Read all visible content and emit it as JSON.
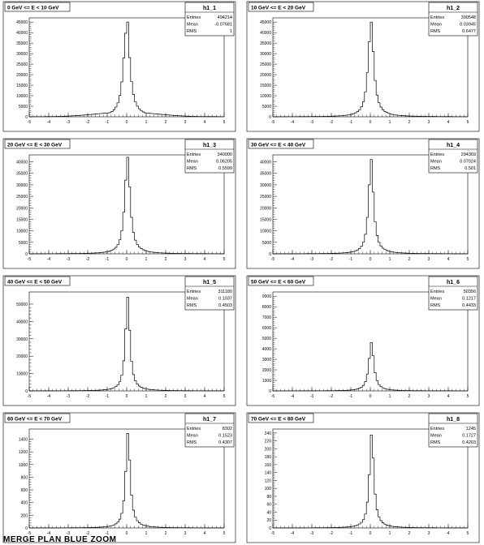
{
  "footer": "MERGE PLAN BLUE ZOOM",
  "chart_data": [
    {
      "type": "bar",
      "title": "0 GeV <= E < 10 GeV",
      "stats": {
        "name": "h1_1",
        "entries": "494214",
        "mean": "-0.07681",
        "rms": "1"
      },
      "xlim": [
        -5,
        5
      ],
      "ylim": [
        0,
        47000
      ],
      "yticks": [
        0,
        5000,
        10000,
        15000,
        20000,
        25000,
        30000,
        35000,
        40000,
        45000
      ],
      "xticks": [
        -5,
        -4,
        -3,
        -2,
        -1,
        0,
        1,
        2,
        3,
        4,
        5
      ],
      "peak": 45000,
      "width": 0.28,
      "floor": 2200,
      "floor_width": 2.2
    },
    {
      "type": "bar",
      "title": "10 GeV <= E < 20 GeV",
      "stats": {
        "name": "h1_2",
        "entries": "390548",
        "mean": "0.03945",
        "rms": "0.6477"
      },
      "xlim": [
        -5,
        5
      ],
      "ylim": [
        0,
        47000
      ],
      "yticks": [
        0,
        5000,
        10000,
        15000,
        20000,
        25000,
        30000,
        35000,
        40000,
        45000
      ],
      "xticks": [
        -5,
        -4,
        -3,
        -2,
        -1,
        0,
        1,
        2,
        3,
        4,
        5
      ],
      "peak": 45000,
      "width": 0.25,
      "floor": 500,
      "floor_width": 1.4
    },
    {
      "type": "bar",
      "title": "20 GeV <= E < 30 GeV",
      "stats": {
        "name": "h1_3",
        "entries": "340000",
        "mean": "0.06205",
        "rms": "0.5599"
      },
      "xlim": [
        -5,
        5
      ],
      "ylim": [
        0,
        43000
      ],
      "yticks": [
        0,
        5000,
        10000,
        15000,
        20000,
        25000,
        30000,
        35000,
        40000
      ],
      "xticks": [
        -5,
        -4,
        -3,
        -2,
        -1,
        0,
        1,
        2,
        3,
        4,
        5
      ],
      "peak": 42000,
      "width": 0.24,
      "floor": 300,
      "floor_width": 1.2
    },
    {
      "type": "bar",
      "title": "30 GeV <= E < 40 GeV",
      "stats": {
        "name": "h1_4",
        "entries": "294369",
        "mean": "0.07024",
        "rms": "0.501"
      },
      "xlim": [
        -5,
        5
      ],
      "ylim": [
        0,
        43000
      ],
      "yticks": [
        0,
        5000,
        10000,
        15000,
        20000,
        25000,
        30000,
        35000,
        40000
      ],
      "xticks": [
        -5,
        -4,
        -3,
        -2,
        -1,
        0,
        1,
        2,
        3,
        4,
        5
      ],
      "peak": 41000,
      "width": 0.22,
      "floor": 200,
      "floor_width": 1.1
    },
    {
      "type": "bar",
      "title": "40 GeV <= E < 50 GeV",
      "stats": {
        "name": "h1_5",
        "entries": "311180",
        "mean": "0.1037",
        "rms": "0.4503"
      },
      "xlim": [
        -5,
        5
      ],
      "ylim": [
        0,
        57000
      ],
      "yticks": [
        0,
        10000,
        20000,
        30000,
        40000,
        50000
      ],
      "xticks": [
        -5,
        -4,
        -3,
        -2,
        -1,
        0,
        1,
        2,
        3,
        4,
        5
      ],
      "peak": 54000,
      "width": 0.2,
      "floor": 200,
      "floor_width": 1.0
    },
    {
      "type": "bar",
      "title": "50 GeV <= E < 60 GeV",
      "stats": {
        "name": "h1_6",
        "entries": "50356",
        "mean": "0.1217",
        "rms": "0.4433"
      },
      "xlim": [
        -5,
        5
      ],
      "ylim": [
        0,
        9400
      ],
      "yticks": [
        0,
        1000,
        2000,
        3000,
        4000,
        5000,
        6000,
        7000,
        8000,
        9000
      ],
      "xticks": [
        -5,
        -4,
        -3,
        -2,
        -1,
        0,
        1,
        2,
        3,
        4,
        5
      ],
      "peak": 4600,
      "width": 0.22,
      "floor": 40,
      "floor_width": 1.0
    },
    {
      "type": "bar",
      "title": "60 GeV <= E < 70 GeV",
      "stats": {
        "name": "h1_7",
        "entries": "8302",
        "mean": "0.1523",
        "rms": "0.4307"
      },
      "xlim": [
        -5,
        5
      ],
      "ylim": [
        0,
        1560
      ],
      "yticks": [
        0,
        200,
        400,
        600,
        800,
        1000,
        1200,
        1400
      ],
      "xticks": [
        -5,
        -4,
        -3,
        -2,
        -1,
        0,
        1,
        2,
        3,
        4,
        5
      ],
      "peak": 1490,
      "width": 0.2,
      "floor": 8,
      "floor_width": 1.0
    },
    {
      "type": "bar",
      "title": "70 GeV <= E < 80 GeV",
      "stats": {
        "name": "h1_8",
        "entries": "1245",
        "mean": "0.1727",
        "rms": "0.4203"
      },
      "xlim": [
        -5,
        5
      ],
      "ylim": [
        0,
        250
      ],
      "yticks": [
        0,
        20,
        40,
        60,
        80,
        100,
        120,
        140,
        160,
        180,
        200,
        220,
        240
      ],
      "xticks": [
        -5,
        -4,
        -3,
        -2,
        -1,
        0,
        1,
        2,
        3,
        4,
        5
      ],
      "peak": 235,
      "width": 0.2,
      "floor": 2,
      "floor_width": 1.0
    }
  ],
  "labels": {
    "entries": "Entries",
    "mean": "Mean",
    "rms": "RMS"
  }
}
